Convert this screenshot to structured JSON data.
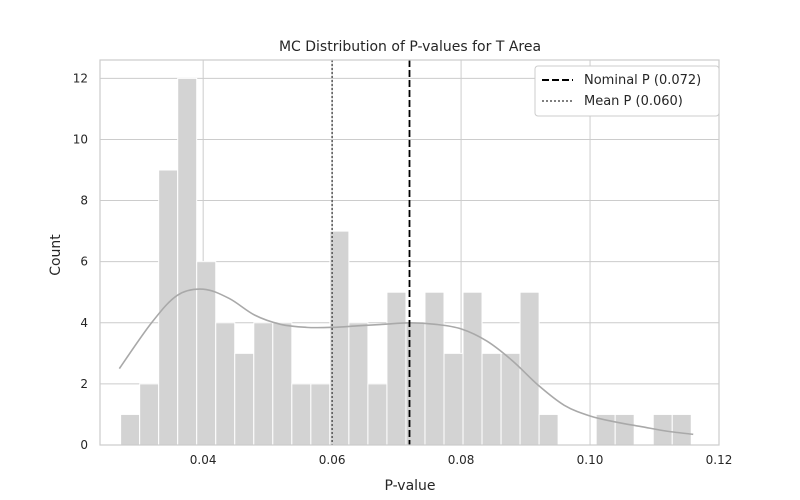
{
  "chart_data": {
    "type": "histogram",
    "title": "MC Distribution of P-values for T Area",
    "xlabel": "P-value",
    "ylabel": "Count",
    "xlim": [
      0.024,
      0.12
    ],
    "ylim": [
      0,
      12.6
    ],
    "xticks": [
      0.04,
      0.06,
      0.08,
      0.1,
      0.12
    ],
    "xtick_labels": [
      "0.04",
      "0.06",
      "0.08",
      "0.10",
      "0.12"
    ],
    "yticks": [
      0,
      2,
      4,
      6,
      8,
      10,
      12
    ],
    "ytick_labels": [
      "0",
      "2",
      "4",
      "6",
      "8",
      "10",
      "12"
    ],
    "grid": true,
    "bin_start": 0.0272,
    "bin_width": 0.00295,
    "counts": [
      1,
      2,
      9,
      12,
      6,
      4,
      3,
      4,
      4,
      2,
      2,
      7,
      4,
      2,
      5,
      4,
      5,
      3,
      5,
      3,
      3,
      5,
      1,
      0,
      0,
      1,
      1,
      0,
      1,
      1
    ],
    "kde": {
      "x": [
        0.027,
        0.032,
        0.036,
        0.04,
        0.044,
        0.048,
        0.052,
        0.056,
        0.06,
        0.064,
        0.068,
        0.072,
        0.076,
        0.08,
        0.084,
        0.088,
        0.092,
        0.096,
        0.1,
        0.104,
        0.108,
        0.112,
        0.116
      ],
      "y": [
        2.5,
        4.0,
        4.9,
        5.1,
        4.8,
        4.25,
        3.95,
        3.85,
        3.85,
        3.9,
        3.95,
        4.0,
        3.95,
        3.8,
        3.4,
        2.75,
        1.95,
        1.3,
        0.95,
        0.75,
        0.6,
        0.45,
        0.35
      ]
    },
    "reference_lines": [
      {
        "label": "Nominal P (0.072)",
        "x": 0.072,
        "style": "dashed",
        "color": "#000000"
      },
      {
        "label": "Mean P (0.060)",
        "x": 0.06,
        "style": "dotted",
        "color": "#555555"
      }
    ],
    "legend_position": "top-right",
    "colors": {
      "bars": "#d3d3d3",
      "bar_edge": "#ffffff",
      "kde": "#a9a9a9",
      "grid": "#cccccc",
      "axes": "#cccccc"
    }
  }
}
